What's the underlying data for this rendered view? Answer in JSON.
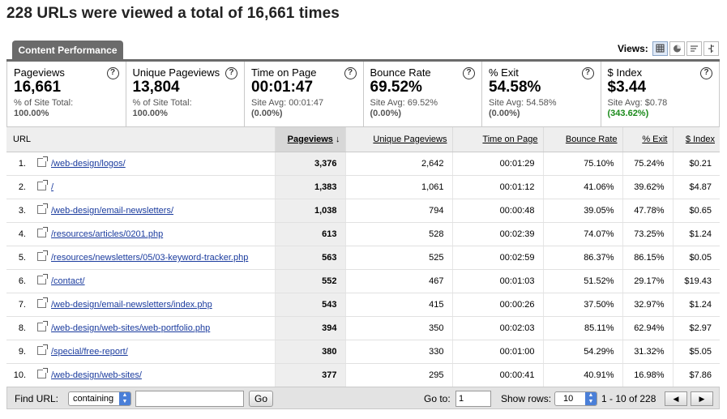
{
  "page_title": "228 URLs were viewed a total of 16,661 times",
  "tab_label": "Content Performance",
  "views_label": "Views:",
  "scorecard": [
    {
      "label": "Pageviews",
      "value": "16,661",
      "sub1": "% of Site Total:",
      "sub2": "100.00%",
      "sub2_color": "#555555"
    },
    {
      "label": "Unique Pageviews",
      "value": "13,804",
      "sub1": "% of Site Total:",
      "sub2": "100.00%",
      "sub2_color": "#555555"
    },
    {
      "label": "Time on Page",
      "value": "00:01:47",
      "sub1": "Site Avg: 00:01:47",
      "sub2": "(0.00%)",
      "sub2_color": "#555555"
    },
    {
      "label": "Bounce Rate",
      "value": "69.52%",
      "sub1": "Site Avg: 69.52%",
      "sub2": "(0.00%)",
      "sub2_color": "#555555"
    },
    {
      "label": "% Exit",
      "value": "54.58%",
      "sub1": "Site Avg: 54.58%",
      "sub2": "(0.00%)",
      "sub2_color": "#555555"
    },
    {
      "label": "$ Index",
      "value": "$3.44",
      "sub1": "Site Avg: $0.78",
      "sub2": "(343.62%)",
      "sub2_color": "#1a8a1a"
    }
  ],
  "table": {
    "columns": {
      "url": "URL",
      "pageviews": "Pageviews",
      "sort_arrow": "↓",
      "unique": "Unique Pageviews",
      "time": "Time on Page",
      "bounce": "Bounce Rate",
      "exit": "% Exit",
      "index": "$ Index"
    },
    "rows": [
      {
        "rank": "1.",
        "url": "/web-design/logos/",
        "pageviews": "3,376",
        "unique": "2,642",
        "time": "00:01:29",
        "bounce": "75.10%",
        "exit": "75.24%",
        "index": "$0.21"
      },
      {
        "rank": "2.",
        "url": "/",
        "pageviews": "1,383",
        "unique": "1,061",
        "time": "00:01:12",
        "bounce": "41.06%",
        "exit": "39.62%",
        "index": "$4.87"
      },
      {
        "rank": "3.",
        "url": "/web-design/email-newsletters/",
        "pageviews": "1,038",
        "unique": "794",
        "time": "00:00:48",
        "bounce": "39.05%",
        "exit": "47.78%",
        "index": "$0.65"
      },
      {
        "rank": "4.",
        "url": "/resources/articles/0201.php",
        "pageviews": "613",
        "unique": "528",
        "time": "00:02:39",
        "bounce": "74.07%",
        "exit": "73.25%",
        "index": "$1.24"
      },
      {
        "rank": "5.",
        "url": "/resources/newsletters/05/03-keyword-tracker.php",
        "pageviews": "563",
        "unique": "525",
        "time": "00:02:59",
        "bounce": "86.37%",
        "exit": "86.15%",
        "index": "$0.05"
      },
      {
        "rank": "6.",
        "url": "/contact/",
        "pageviews": "552",
        "unique": "467",
        "time": "00:01:03",
        "bounce": "51.52%",
        "exit": "29.17%",
        "index": "$19.43"
      },
      {
        "rank": "7.",
        "url": "/web-design/email-newsletters/index.php",
        "pageviews": "543",
        "unique": "415",
        "time": "00:00:26",
        "bounce": "37.50%",
        "exit": "32.97%",
        "index": "$1.24"
      },
      {
        "rank": "8.",
        "url": "/web-design/web-sites/web-portfolio.php",
        "pageviews": "394",
        "unique": "350",
        "time": "00:02:03",
        "bounce": "85.11%",
        "exit": "62.94%",
        "index": "$2.97"
      },
      {
        "rank": "9.",
        "url": "/special/free-report/",
        "pageviews": "380",
        "unique": "330",
        "time": "00:01:00",
        "bounce": "54.29%",
        "exit": "31.32%",
        "index": "$5.05"
      },
      {
        "rank": "10.",
        "url": "/web-design/web-sites/",
        "pageviews": "377",
        "unique": "295",
        "time": "00:00:41",
        "bounce": "40.91%",
        "exit": "16.98%",
        "index": "$7.86"
      }
    ]
  },
  "footer": {
    "find_label": "Find URL:",
    "find_mode": "containing",
    "find_value": "",
    "go_label": "Go",
    "goto_label": "Go to:",
    "goto_value": "1",
    "show_rows_label": "Show rows:",
    "show_rows_value": "10",
    "range_text": "1 - 10 of 228",
    "prev_icon": "◀",
    "next_icon": "▶"
  }
}
